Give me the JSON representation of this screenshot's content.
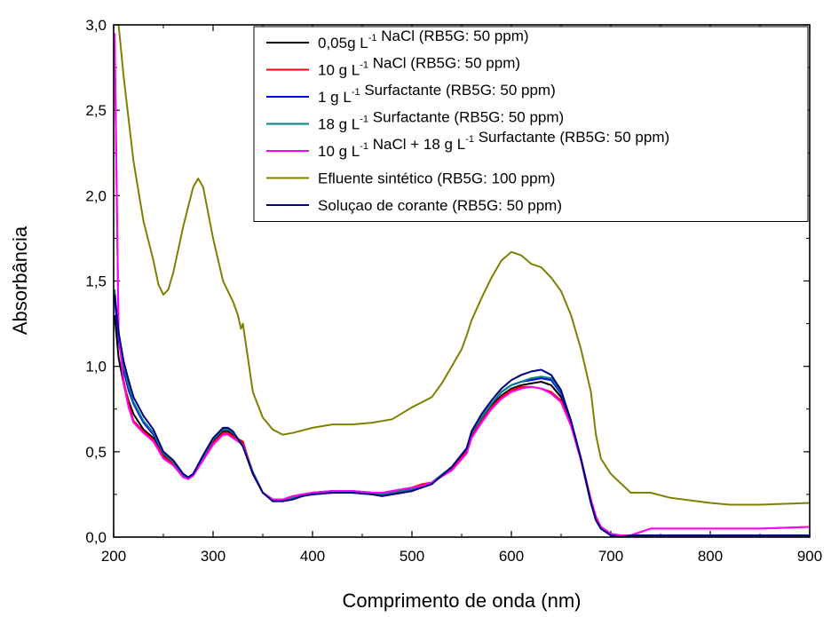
{
  "chart_data": {
    "type": "line",
    "xlabel": "Comprimento de onda (nm)",
    "ylabel": "Absorbância",
    "xlim": [
      200,
      900
    ],
    "ylim": [
      0,
      3.0
    ],
    "x_ticks": [
      200,
      300,
      400,
      500,
      600,
      700,
      800,
      900
    ],
    "x_tick_labels": [
      "200",
      "300",
      "400",
      "500",
      "600",
      "700",
      "800",
      "900"
    ],
    "y_ticks": [
      0,
      0.5,
      1.0,
      1.5,
      2.0,
      2.5,
      3.0
    ],
    "y_tick_labels": [
      "0,0",
      "0,5",
      "1,0",
      "1,5",
      "2,0",
      "2,5",
      "3,0"
    ],
    "legend_position": "top-right",
    "series": [
      {
        "name": "0,05g L-1 NaCl  (RB5G: 50 ppm)",
        "legend": {
          "pre": "0,05g L",
          "sup": "-1",
          "post": " NaCl  (RB5G: 50 ppm)"
        },
        "color": "#000000",
        "x": [
          201,
          205,
          210,
          215,
          220,
          230,
          240,
          250,
          260,
          270,
          275,
          280,
          290,
          300,
          310,
          315,
          320,
          330,
          340,
          350,
          360,
          370,
          380,
          390,
          400,
          420,
          440,
          460,
          470,
          480,
          500,
          520,
          540,
          555,
          560,
          570,
          580,
          590,
          600,
          610,
          620,
          630,
          640,
          650,
          660,
          670,
          680,
          685,
          690,
          700,
          710,
          720,
          740,
          800,
          850,
          900
        ],
        "y": [
          1.3,
          1.05,
          0.9,
          0.8,
          0.72,
          0.63,
          0.58,
          0.48,
          0.43,
          0.36,
          0.34,
          0.36,
          0.46,
          0.56,
          0.62,
          0.62,
          0.6,
          0.55,
          0.38,
          0.26,
          0.22,
          0.21,
          0.23,
          0.24,
          0.25,
          0.26,
          0.26,
          0.25,
          0.24,
          0.25,
          0.27,
          0.32,
          0.4,
          0.51,
          0.6,
          0.69,
          0.77,
          0.83,
          0.87,
          0.89,
          0.9,
          0.91,
          0.89,
          0.82,
          0.66,
          0.45,
          0.2,
          0.1,
          0.05,
          0.01,
          0.0,
          0.01,
          0.01,
          0.01,
          0.01,
          0.01
        ]
      },
      {
        "name": "10 g L-1 NaCl  (RB5G: 50 ppm)",
        "legend": {
          "pre": "10 g L",
          "sup": "-1",
          "post": " NaCl  (RB5G: 50 ppm)"
        },
        "color": "#ff0000",
        "x": [
          201,
          205,
          210,
          215,
          220,
          230,
          240,
          250,
          260,
          270,
          275,
          280,
          290,
          300,
          310,
          315,
          320,
          330,
          340,
          350,
          360,
          370,
          380,
          390,
          400,
          420,
          440,
          460,
          470,
          480,
          500,
          510,
          520,
          540,
          555,
          560,
          570,
          580,
          590,
          600,
          610,
          620,
          630,
          640,
          650,
          660,
          670,
          680,
          685,
          690,
          700,
          710,
          720,
          740,
          800,
          850,
          900
        ],
        "y": [
          2.95,
          1.2,
          0.92,
          0.78,
          0.68,
          0.62,
          0.57,
          0.47,
          0.43,
          0.36,
          0.34,
          0.36,
          0.46,
          0.55,
          0.61,
          0.61,
          0.59,
          0.56,
          0.37,
          0.26,
          0.22,
          0.22,
          0.24,
          0.25,
          0.26,
          0.27,
          0.27,
          0.26,
          0.26,
          0.27,
          0.29,
          0.31,
          0.32,
          0.4,
          0.5,
          0.59,
          0.68,
          0.76,
          0.82,
          0.86,
          0.88,
          0.88,
          0.87,
          0.85,
          0.8,
          0.66,
          0.46,
          0.22,
          0.12,
          0.06,
          0.02,
          0.01,
          0.01,
          0.05,
          0.05,
          0.05,
          0.06
        ]
      },
      {
        "name": "1 g L-1 Surfactante  (RB5G: 50 ppm)",
        "legend": {
          "pre": "1 g L",
          "sup": "-1",
          "post": " Surfactante  (RB5G: 50 ppm)"
        },
        "color": "#0000ff",
        "x": [
          201,
          205,
          210,
          215,
          220,
          230,
          240,
          250,
          260,
          270,
          275,
          280,
          290,
          300,
          310,
          315,
          320,
          330,
          340,
          350,
          360,
          370,
          380,
          390,
          400,
          420,
          440,
          460,
          470,
          480,
          500,
          520,
          540,
          555,
          560,
          570,
          580,
          590,
          600,
          610,
          620,
          630,
          640,
          650,
          660,
          670,
          680,
          685,
          690,
          700,
          710,
          720,
          740,
          800,
          850,
          900
        ],
        "y": [
          1.4,
          1.15,
          0.98,
          0.86,
          0.78,
          0.67,
          0.6,
          0.49,
          0.44,
          0.36,
          0.35,
          0.37,
          0.47,
          0.57,
          0.63,
          0.63,
          0.61,
          0.54,
          0.38,
          0.26,
          0.22,
          0.21,
          0.23,
          0.24,
          0.26,
          0.27,
          0.27,
          0.26,
          0.25,
          0.26,
          0.28,
          0.32,
          0.41,
          0.52,
          0.61,
          0.7,
          0.78,
          0.85,
          0.89,
          0.91,
          0.92,
          0.93,
          0.92,
          0.84,
          0.68,
          0.46,
          0.2,
          0.1,
          0.05,
          0.01,
          0.0,
          0.01,
          0.01,
          0.01,
          0.01,
          0.01
        ]
      },
      {
        "name": "18 g L-1 Surfactante  (RB5G: 50 ppm)",
        "legend": {
          "pre": "18 g L",
          "sup": "-1",
          "post": " Surfactante  (RB5G: 50 ppm)"
        },
        "color": "#008080",
        "x": [
          201,
          205,
          210,
          215,
          220,
          230,
          240,
          250,
          260,
          270,
          275,
          280,
          290,
          300,
          310,
          315,
          320,
          330,
          340,
          350,
          360,
          370,
          380,
          390,
          400,
          420,
          440,
          460,
          470,
          480,
          500,
          520,
          540,
          555,
          560,
          570,
          580,
          590,
          600,
          610,
          620,
          630,
          640,
          650,
          660,
          670,
          680,
          685,
          690,
          700,
          710,
          720,
          740,
          800,
          850,
          900
        ],
        "y": [
          1.45,
          1.18,
          1.0,
          0.88,
          0.79,
          0.68,
          0.61,
          0.49,
          0.44,
          0.36,
          0.35,
          0.37,
          0.47,
          0.57,
          0.63,
          0.63,
          0.61,
          0.54,
          0.38,
          0.26,
          0.22,
          0.21,
          0.23,
          0.24,
          0.26,
          0.27,
          0.27,
          0.26,
          0.25,
          0.26,
          0.28,
          0.32,
          0.41,
          0.52,
          0.61,
          0.7,
          0.78,
          0.85,
          0.89,
          0.91,
          0.93,
          0.94,
          0.93,
          0.85,
          0.68,
          0.46,
          0.2,
          0.1,
          0.05,
          0.01,
          0.0,
          0.01,
          0.01,
          0.01,
          0.01,
          0.01
        ]
      },
      {
        "name": "10 g L-1 NaCl + 18 g L-1 Surfactante  (RB5G: 50 ppm)",
        "legend": {
          "pre": "10 g L",
          "sup": "-1",
          "mid": " NaCl + 18 g L",
          "sup2": "-1",
          "post": " Surfactante  (RB5G: 50 ppm)"
        },
        "color": "#ff00ff",
        "x": [
          201,
          205,
          210,
          215,
          220,
          230,
          240,
          250,
          260,
          270,
          275,
          280,
          290,
          300,
          310,
          315,
          320,
          330,
          340,
          350,
          360,
          370,
          380,
          390,
          400,
          420,
          440,
          460,
          470,
          480,
          500,
          510,
          520,
          540,
          555,
          560,
          570,
          580,
          590,
          600,
          610,
          620,
          630,
          640,
          650,
          660,
          670,
          680,
          685,
          690,
          700,
          710,
          720,
          740,
          800,
          850,
          900
        ],
        "y": [
          2.95,
          1.2,
          0.9,
          0.76,
          0.67,
          0.61,
          0.56,
          0.46,
          0.42,
          0.35,
          0.34,
          0.36,
          0.45,
          0.54,
          0.6,
          0.6,
          0.58,
          0.54,
          0.37,
          0.26,
          0.22,
          0.22,
          0.24,
          0.25,
          0.26,
          0.27,
          0.27,
          0.26,
          0.26,
          0.27,
          0.29,
          0.3,
          0.32,
          0.39,
          0.49,
          0.58,
          0.67,
          0.75,
          0.81,
          0.85,
          0.87,
          0.88,
          0.87,
          0.84,
          0.79,
          0.65,
          0.45,
          0.22,
          0.12,
          0.06,
          0.02,
          0.01,
          0.01,
          0.05,
          0.05,
          0.05,
          0.06
        ]
      },
      {
        "name": "Efluente sintético (RB5G: 100 ppm)",
        "legend": {
          "pre": "Efluente sintético (RB5G: 100 ppm)"
        },
        "color": "#808000",
        "x": [
          205,
          210,
          220,
          230,
          240,
          245,
          250,
          255,
          260,
          270,
          280,
          285,
          290,
          300,
          310,
          320,
          325,
          328,
          330,
          335,
          340,
          350,
          360,
          370,
          380,
          400,
          420,
          440,
          460,
          480,
          500,
          510,
          520,
          530,
          540,
          550,
          555,
          560,
          570,
          580,
          590,
          600,
          610,
          620,
          630,
          640,
          650,
          660,
          670,
          680,
          685,
          690,
          700,
          720,
          740,
          760,
          800,
          820,
          850,
          900
        ],
        "y": [
          3.0,
          2.7,
          2.2,
          1.85,
          1.62,
          1.48,
          1.42,
          1.45,
          1.55,
          1.82,
          2.05,
          2.1,
          2.05,
          1.75,
          1.5,
          1.38,
          1.3,
          1.22,
          1.25,
          1.05,
          0.85,
          0.7,
          0.63,
          0.6,
          0.61,
          0.64,
          0.66,
          0.66,
          0.67,
          0.69,
          0.76,
          0.79,
          0.82,
          0.9,
          1.0,
          1.1,
          1.18,
          1.27,
          1.4,
          1.52,
          1.62,
          1.67,
          1.65,
          1.6,
          1.58,
          1.52,
          1.44,
          1.3,
          1.1,
          0.85,
          0.6,
          0.46,
          0.37,
          0.26,
          0.26,
          0.23,
          0.2,
          0.19,
          0.19,
          0.2
        ]
      },
      {
        "name": "Soluçao de corante (RB5G: 50 ppm)",
        "legend": {
          "pre": "Soluçao de corante (RB5G: 50 ppm)"
        },
        "color": "#000080",
        "x": [
          201,
          205,
          210,
          215,
          220,
          230,
          240,
          250,
          260,
          270,
          275,
          280,
          290,
          300,
          310,
          315,
          320,
          330,
          340,
          350,
          360,
          370,
          380,
          390,
          400,
          420,
          440,
          460,
          470,
          480,
          500,
          520,
          540,
          555,
          560,
          570,
          580,
          590,
          600,
          610,
          620,
          630,
          640,
          650,
          660,
          670,
          680,
          685,
          690,
          700,
          710,
          720,
          740,
          800,
          850,
          900
        ],
        "y": [
          1.42,
          1.2,
          1.03,
          0.92,
          0.82,
          0.71,
          0.63,
          0.5,
          0.45,
          0.37,
          0.35,
          0.37,
          0.48,
          0.58,
          0.64,
          0.64,
          0.62,
          0.53,
          0.37,
          0.26,
          0.21,
          0.21,
          0.22,
          0.24,
          0.25,
          0.26,
          0.26,
          0.25,
          0.24,
          0.25,
          0.27,
          0.31,
          0.41,
          0.52,
          0.62,
          0.72,
          0.8,
          0.87,
          0.92,
          0.95,
          0.97,
          0.98,
          0.95,
          0.86,
          0.68,
          0.46,
          0.2,
          0.1,
          0.05,
          0.01,
          0.0,
          0.01,
          0.01,
          0.01,
          0.01,
          0.01
        ]
      }
    ]
  }
}
